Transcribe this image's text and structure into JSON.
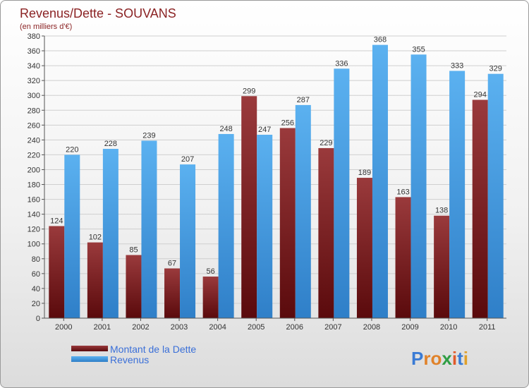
{
  "chart_data": {
    "type": "bar",
    "title": "Revenus/Dette - SOUVANS",
    "subtitle": "(en milliers d'€)",
    "categories": [
      "2000",
      "2001",
      "2002",
      "2003",
      "2004",
      "2005",
      "2006",
      "2007",
      "2008",
      "2009",
      "2010",
      "2011"
    ],
    "series": [
      {
        "name": "Montant de la Dette",
        "color": "#7a1e20",
        "values": [
          124,
          102,
          85,
          67,
          56,
          299,
          256,
          229,
          189,
          163,
          138,
          294
        ]
      },
      {
        "name": "Revenus",
        "color": "#4aa3e8",
        "values": [
          220,
          228,
          239,
          207,
          248,
          247,
          287,
          336,
          368,
          355,
          333,
          329
        ]
      }
    ],
    "ylim": [
      0,
      380
    ],
    "ytick_step": 20,
    "grid": true,
    "legend_position": "bottom-left"
  },
  "logo": {
    "text": "Proxiti"
  }
}
